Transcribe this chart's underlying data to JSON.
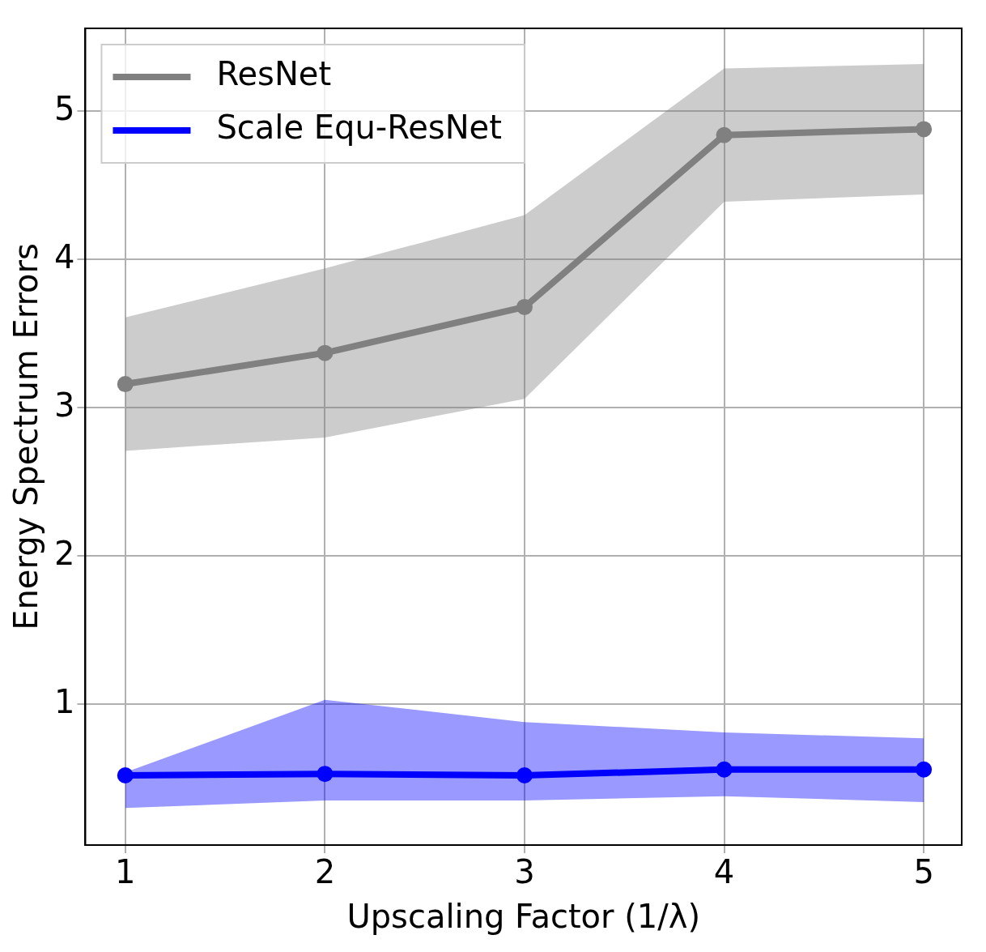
{
  "chart_data": {
    "type": "line",
    "xlabel": "Upscaling Factor (1/λ)",
    "ylabel": "Energy Spectrum Errors",
    "x": [
      1,
      2,
      3,
      4,
      5
    ],
    "xlim": [
      0.8,
      5.19
    ],
    "xticks": [
      1,
      2,
      3,
      4,
      5
    ],
    "ylim": [
      0.05,
      5.56
    ],
    "yticks": [
      1,
      2,
      3,
      4,
      5
    ],
    "grid": true,
    "legend": "top left",
    "marker": "circle",
    "line_style": "solid",
    "series": [
      {
        "name": "ResNet",
        "color": "#808080",
        "values": [
          3.16,
          3.37,
          3.68,
          4.84,
          4.88
        ],
        "lower": [
          2.71,
          2.8,
          3.06,
          4.39,
          4.44
        ],
        "upper": [
          3.61,
          3.94,
          4.3,
          5.29,
          5.32
        ]
      },
      {
        "name": "Scale Equ-ResNet",
        "color": "#0000ff",
        "values": [
          0.52,
          0.53,
          0.52,
          0.56,
          0.56
        ],
        "lower": [
          0.3,
          0.35,
          0.35,
          0.38,
          0.34
        ],
        "upper": [
          0.54,
          1.03,
          0.88,
          0.81,
          0.77
        ]
      }
    ]
  }
}
